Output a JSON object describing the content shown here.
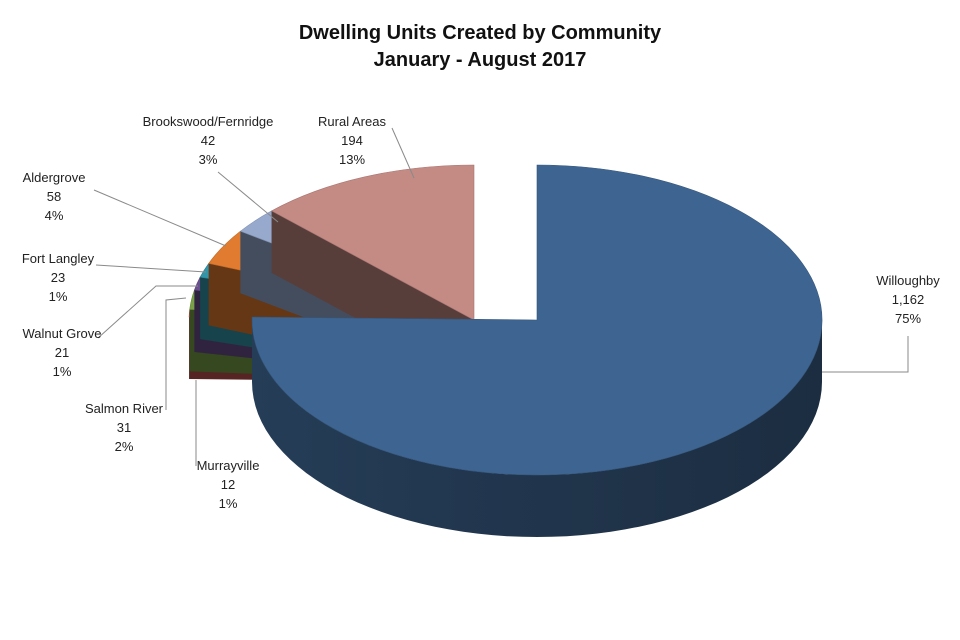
{
  "chart_data": {
    "type": "pie",
    "title": "Dwelling Units Created by Community",
    "subtitle": "January - August 2017",
    "slices": [
      {
        "label": "Willoughby",
        "value": 1162,
        "value_text": "1,162",
        "percent": "75%",
        "color": "#3e6591"
      },
      {
        "label": "Murrayville",
        "value": 12,
        "value_text": "12",
        "percent": "1%",
        "color": "#c0504d"
      },
      {
        "label": "Salmon River",
        "value": 31,
        "value_text": "31",
        "percent": "2%",
        "color": "#79a048"
      },
      {
        "label": "Walnut Grove",
        "value": 21,
        "value_text": "21",
        "percent": "1%",
        "color": "#6a4e8e"
      },
      {
        "label": "Fort Langley",
        "value": 23,
        "value_text": "23",
        "percent": "1%",
        "color": "#3395a8"
      },
      {
        "label": "Aldergrove",
        "value": 58,
        "value_text": "58",
        "percent": "4%",
        "color": "#e07b2f"
      },
      {
        "label": "Brookswood/Fernridge",
        "value": 42,
        "value_text": "42",
        "percent": "3%",
        "color": "#97aace"
      },
      {
        "label": "Rural Areas",
        "value": 194,
        "value_text": "194",
        "percent": "13%",
        "color": "#c48a84"
      }
    ],
    "style": "3d-exploded",
    "legend": "none"
  }
}
